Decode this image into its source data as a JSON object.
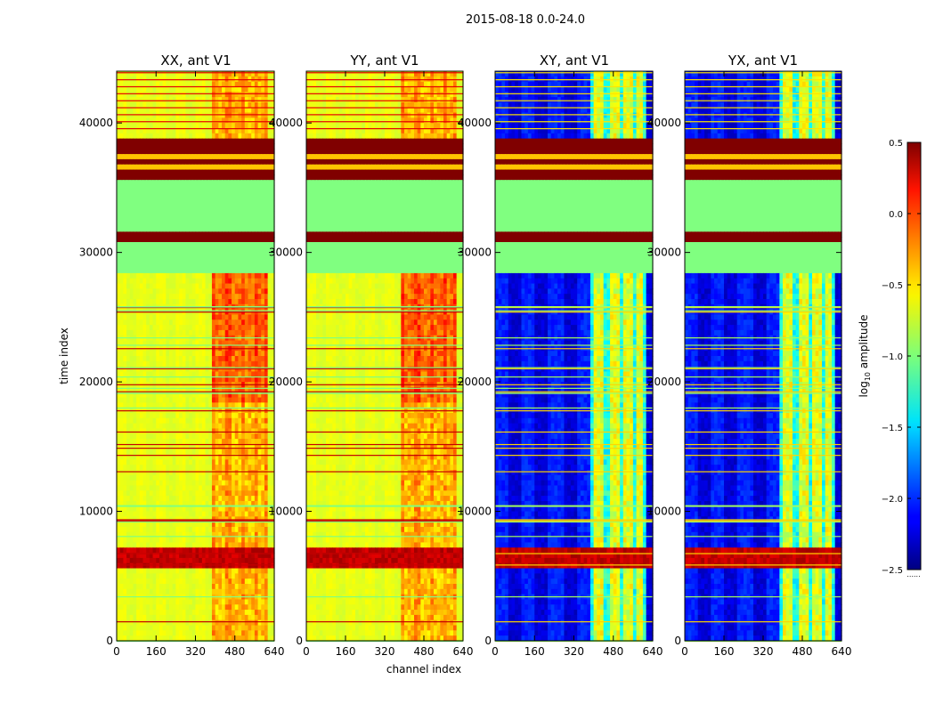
{
  "figure": {
    "suptitle": "2015-08-18 0.0-24.0",
    "shared_xlabel": "channel index",
    "shared_ylabel": "time index"
  },
  "chart_data": {
    "type": "heatmap",
    "x_range": [
      0,
      640
    ],
    "y_range": [
      0,
      44000
    ],
    "x_ticks": [
      0,
      160,
      320,
      480,
      640
    ],
    "y_ticks": [
      0,
      10000,
      20000,
      30000,
      40000
    ],
    "panels": [
      {
        "title": "XX, ant V1",
        "polarization": "XX",
        "mode": "parallel"
      },
      {
        "title": "YY, ant V1",
        "polarization": "YY",
        "mode": "parallel"
      },
      {
        "title": "XY, ant V1",
        "polarization": "XY",
        "mode": "cross"
      },
      {
        "title": "YX, ant V1",
        "polarization": "YX",
        "mode": "cross"
      }
    ],
    "features": {
      "flat_band": [
        28500,
        35500
      ],
      "striped_band": [
        35500,
        39000
      ],
      "stripes_in_flat": [
        30500,
        32300
      ],
      "burst_band": [
        5500,
        7200
      ],
      "high_activity_channels": [
        [
          400,
          440
        ],
        [
          470,
          510
        ],
        [
          520,
          560
        ],
        [
          575,
          600
        ]
      ]
    },
    "colorbar": {
      "label": "log10 amplitude",
      "label_prefix": "log",
      "label_sub": "10",
      "label_suffix": " amplitude",
      "vmin": -2.5,
      "vmax": 0.5,
      "ticks": [
        -2.5,
        -2.0,
        -1.5,
        -1.0,
        -0.5,
        0.0,
        0.5
      ],
      "tick_labels": [
        "−2.5",
        "−2.0",
        "−1.5",
        "−1.0",
        "−0.5",
        "0.0",
        "0.5"
      ],
      "colormap": "jet"
    }
  }
}
